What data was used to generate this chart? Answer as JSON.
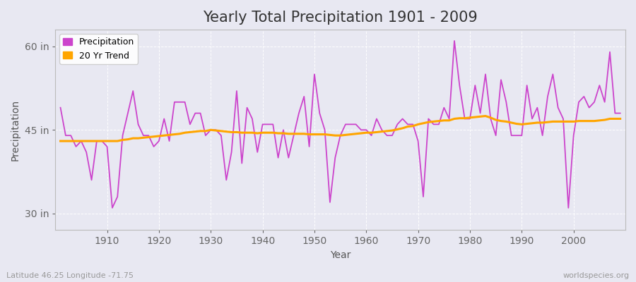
{
  "title": "Yearly Total Precipitation 1901 - 2009",
  "xlabel": "Year",
  "ylabel": "Precipitation",
  "subtitle": "Latitude 46.25 Longitude -71.75",
  "watermark": "worldspecies.org",
  "precip_color": "#CC44CC",
  "trend_color": "#FFA500",
  "bg_color": "#E8E8F0",
  "yticks": [
    30,
    45,
    60
  ],
  "ytick_labels": [
    "30 in",
    "45 in",
    "60 in"
  ],
  "ylim": [
    27,
    63
  ],
  "xlim": [
    1900,
    2010
  ],
  "years": [
    1901,
    1902,
    1903,
    1904,
    1905,
    1906,
    1907,
    1908,
    1909,
    1910,
    1911,
    1912,
    1913,
    1914,
    1915,
    1916,
    1917,
    1918,
    1919,
    1920,
    1921,
    1922,
    1923,
    1924,
    1925,
    1926,
    1927,
    1928,
    1929,
    1930,
    1931,
    1932,
    1933,
    1934,
    1935,
    1936,
    1937,
    1938,
    1939,
    1940,
    1941,
    1942,
    1943,
    1944,
    1945,
    1946,
    1947,
    1948,
    1949,
    1950,
    1951,
    1952,
    1953,
    1954,
    1955,
    1956,
    1957,
    1958,
    1959,
    1960,
    1961,
    1962,
    1963,
    1964,
    1965,
    1966,
    1967,
    1968,
    1969,
    1970,
    1971,
    1972,
    1973,
    1974,
    1975,
    1976,
    1977,
    1978,
    1979,
    1980,
    1981,
    1982,
    1983,
    1984,
    1985,
    1986,
    1987,
    1988,
    1989,
    1990,
    1991,
    1992,
    1993,
    1994,
    1995,
    1996,
    1997,
    1998,
    1999,
    2000,
    2001,
    2002,
    2003,
    2004,
    2005,
    2006,
    2007,
    2008,
    2009
  ],
  "precip": [
    49,
    44,
    44,
    42,
    43,
    41,
    36,
    43,
    43,
    42,
    31,
    33,
    44,
    48,
    52,
    46,
    44,
    44,
    42,
    43,
    47,
    43,
    50,
    50,
    50,
    46,
    48,
    48,
    44,
    45,
    45,
    44,
    36,
    41,
    52,
    39,
    49,
    47,
    41,
    46,
    46,
    46,
    40,
    45,
    40,
    44,
    48,
    51,
    42,
    55,
    48,
    45,
    32,
    40,
    44,
    46,
    46,
    46,
    45,
    45,
    44,
    47,
    45,
    44,
    44,
    46,
    47,
    46,
    46,
    43,
    33,
    47,
    46,
    46,
    49,
    47,
    61,
    53,
    47,
    47,
    53,
    48,
    55,
    47,
    44,
    54,
    50,
    44,
    44,
    44,
    53,
    47,
    49,
    44,
    51,
    55,
    49,
    47,
    31,
    44,
    50,
    51,
    49,
    50,
    53,
    50,
    59,
    48,
    48
  ],
  "trend": [
    43.0,
    43.0,
    43.0,
    43.0,
    43.0,
    43.0,
    43.0,
    43.0,
    43.0,
    43.0,
    43.0,
    43.0,
    43.2,
    43.3,
    43.5,
    43.5,
    43.6,
    43.7,
    43.8,
    43.9,
    44.0,
    44.1,
    44.2,
    44.3,
    44.5,
    44.6,
    44.7,
    44.8,
    44.8,
    45.0,
    44.9,
    44.8,
    44.7,
    44.6,
    44.6,
    44.5,
    44.5,
    44.5,
    44.4,
    44.5,
    44.5,
    44.5,
    44.4,
    44.4,
    44.3,
    44.3,
    44.3,
    44.3,
    44.2,
    44.2,
    44.2,
    44.2,
    44.1,
    44.0,
    44.0,
    44.1,
    44.2,
    44.3,
    44.4,
    44.5,
    44.5,
    44.6,
    44.7,
    44.8,
    44.9,
    45.1,
    45.3,
    45.6,
    45.7,
    46.0,
    46.2,
    46.4,
    46.5,
    46.6,
    46.7,
    46.7,
    47.0,
    47.1,
    47.1,
    47.2,
    47.3,
    47.4,
    47.5,
    47.2,
    46.8,
    46.6,
    46.5,
    46.3,
    46.1,
    46.0,
    46.1,
    46.2,
    46.3,
    46.3,
    46.4,
    46.5,
    46.5,
    46.5,
    46.5,
    46.5,
    46.6,
    46.6,
    46.6,
    46.6,
    46.7,
    46.8,
    47.0,
    47.0,
    47.0
  ]
}
